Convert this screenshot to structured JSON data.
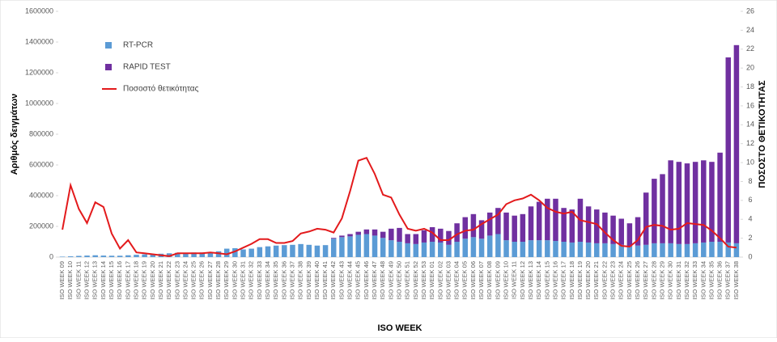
{
  "chart_data": {
    "type": "bar_line",
    "xlabel": "ISO WEEK",
    "ylabel": "Αριθμός δειγμάτων",
    "y2label": "ΠΟΣΟΣΤΟ ΘΕΤΙΚΟΤΗΤΑΣ",
    "stacked": true,
    "legend": "upper left",
    "categories": [
      "ISO WEEK 09",
      "ISO WEEK 10",
      "ISO WEEK 11",
      "ISO WEEK 12",
      "ISO WEEK 13",
      "ISO WEEK 14",
      "ISO WEEK 15",
      "ISO WEEK 16",
      "ISO WEEK 17",
      "ISO WEEK 18",
      "ISO WEEK 19",
      "ISO WEEK 20",
      "ISO WEEK 21",
      "ISO WEEK 22",
      "ISO WEEK 23",
      "ISO WEEK 24",
      "ISO WEEK 25",
      "ISO WEEK 26",
      "ISO WEEK 27",
      "ISO WEEK 28",
      "ISO WEEK 29",
      "ISO WEEK 30",
      "ISO WEEK 31",
      "ISO WEEK 32",
      "ISO WEEK 33",
      "ISO WEEK 34",
      "ISO WEEK 35",
      "ISO WEEK 36",
      "ISO WEEK 37",
      "ISO WEEK 38",
      "ISO WEEK 39",
      "ISO WEEK 40",
      "ISO WEEK 41",
      "ISO WEEK 42",
      "ISO WEEK 43",
      "ISO WEEK 44",
      "ISO WEEK 45",
      "ISO WEEK 46",
      "ISO WEEK 47",
      "ISO WEEK 48",
      "ISO WEEK 49",
      "ISO WEEK 50",
      "ISO WEEK 51",
      "ISO WEEK 52",
      "ISO WEEK 53",
      "ISO WEEK 01",
      "ISO WEEK 02",
      "ISO WEEK 03",
      "ISO WEEK 04",
      "ISO WEEK 05",
      "ISO WEEK 06",
      "ISO WEEK 07",
      "ISO WEEK 08",
      "ISO WEEK 09",
      "ISO WEEK 10",
      "ISO WEEK 11",
      "ISO WEEK 12",
      "ISO WEEK 13",
      "ISO WEEK 14",
      "ISO WEEK 15",
      "ISO WEEK 16",
      "ISO WEEK 17",
      "ISO WEEK 18",
      "ISO WEEK 19",
      "ISO WEEK 20",
      "ISO WEEK 21",
      "ISO WEEK 22",
      "ISO WEEK 23",
      "ISO WEEK 24",
      "ISO WEEK 25",
      "ISO WEEK 26",
      "ISO WEEK 27",
      "ISO WEEK 28",
      "ISO WEEK 29",
      "ISO WEEK 30",
      "ISO WEEK 31",
      "ISO WEEK 32",
      "ISO WEEK 33",
      "ISO WEEK 34",
      "ISO WEEK 35",
      "ISO WEEK 36",
      "ISO WEEK 37",
      "ISO WEEK 38"
    ],
    "series": [
      {
        "name": "RT-PCR",
        "type": "bar",
        "color": "#5b9bd5",
        "values": [
          3000,
          5000,
          8000,
          10000,
          12000,
          10000,
          9000,
          9000,
          12000,
          15000,
          18000,
          20000,
          22000,
          25000,
          28000,
          28000,
          30000,
          30000,
          32000,
          38000,
          55000,
          58000,
          50000,
          55000,
          65000,
          70000,
          75000,
          78000,
          80000,
          85000,
          80000,
          75000,
          78000,
          120000,
          130000,
          135000,
          145000,
          150000,
          140000,
          125000,
          110000,
          100000,
          90000,
          85000,
          95000,
          100000,
          95000,
          80000,
          100000,
          120000,
          130000,
          120000,
          140000,
          150000,
          110000,
          100000,
          100000,
          110000,
          110000,
          110000,
          105000,
          100000,
          95000,
          100000,
          95000,
          90000,
          90000,
          85000,
          80000,
          70000,
          75000,
          80000,
          90000,
          90000,
          90000,
          85000,
          85000,
          90000,
          95000,
          100000,
          100000,
          95000,
          90000
        ]
      },
      {
        "name": "RAPID TEST",
        "type": "bar",
        "color": "#7030a0",
        "values": [
          0,
          0,
          0,
          0,
          0,
          0,
          0,
          0,
          0,
          0,
          0,
          0,
          0,
          0,
          0,
          0,
          0,
          0,
          0,
          0,
          0,
          0,
          0,
          0,
          0,
          0,
          0,
          0,
          0,
          0,
          0,
          0,
          0,
          5000,
          10000,
          15000,
          20000,
          30000,
          40000,
          40000,
          75000,
          90000,
          60000,
          65000,
          80000,
          95000,
          90000,
          90000,
          120000,
          140000,
          150000,
          120000,
          150000,
          170000,
          180000,
          170000,
          180000,
          220000,
          250000,
          270000,
          275000,
          220000,
          215000,
          280000,
          235000,
          220000,
          200000,
          185000,
          170000,
          150000,
          185000,
          340000,
          420000,
          450000,
          540000,
          535000,
          525000,
          530000,
          535000,
          520000,
          580000,
          1205000,
          1290000
        ]
      },
      {
        "name": "Ποσοστό θετικότητας",
        "type": "line",
        "axis": "y2",
        "color": "#e31a1c",
        "values": [
          2.9,
          7.6,
          5.1,
          3.6,
          5.8,
          5.3,
          2.5,
          0.9,
          1.8,
          0.5,
          0.4,
          0.3,
          0.2,
          0.1,
          0.4,
          0.4,
          0.4,
          0.4,
          0.5,
          0.4,
          0.3,
          0.6,
          1.0,
          1.4,
          1.9,
          1.9,
          1.5,
          1.5,
          1.7,
          2.5,
          2.7,
          3.0,
          2.9,
          2.6,
          4.1,
          7.0,
          10.2,
          10.5,
          8.8,
          6.6,
          6.3,
          4.5,
          3.0,
          2.8,
          3.0,
          2.6,
          1.8,
          1.8,
          2.4,
          2.8,
          2.9,
          3.5,
          4.0,
          4.5,
          5.6,
          6.0,
          6.2,
          6.6,
          6.0,
          5.2,
          4.8,
          4.6,
          4.8,
          3.9,
          3.7,
          3.5,
          2.6,
          1.8,
          1.2,
          1.1,
          1.8,
          3.2,
          3.4,
          3.3,
          2.9,
          3.0,
          3.6,
          3.5,
          3.4,
          2.8,
          2.0,
          1.1,
          1.0
        ]
      }
    ],
    "ylim": [
      0,
      1600000
    ],
    "yticks": [
      0,
      200000,
      400000,
      600000,
      800000,
      1000000,
      1200000,
      1400000,
      1600000
    ],
    "y2lim": [
      0,
      26
    ],
    "y2ticks": [
      0,
      2,
      4,
      6,
      8,
      10,
      12,
      14,
      16,
      18,
      20,
      22,
      24,
      26
    ]
  }
}
